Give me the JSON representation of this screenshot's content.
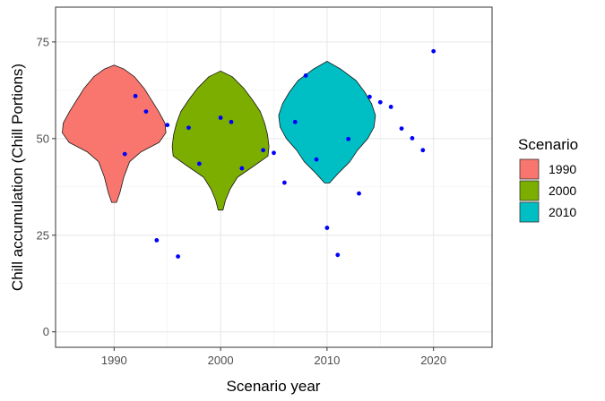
{
  "chart_data": {
    "type": "violin",
    "xlabel": "Scenario year",
    "ylabel": "Chill accumulation (Chill Portions)",
    "xlim": [
      1984.5,
      2025.5
    ],
    "ylim": [
      -4,
      84
    ],
    "x_ticks": [
      1990,
      2000,
      2010,
      2020
    ],
    "x_tick_labels": [
      "1990",
      "2000",
      "2010",
      "2020"
    ],
    "y_ticks": [
      0,
      25,
      50,
      75
    ],
    "y_tick_labels": [
      "0",
      "25",
      "50",
      "75"
    ],
    "grid": true,
    "legend": {
      "title": "Scenario",
      "position": "right",
      "entries": [
        {
          "label": "1990",
          "color": "#F8766D"
        },
        {
          "label": "2000",
          "color": "#7CAE00"
        },
        {
          "label": "2010",
          "color": "#00BFC4"
        }
      ]
    },
    "violins": [
      {
        "name": "1990",
        "x": 1990,
        "color": "#F8766D",
        "profile": [
          [
            33.5,
            0.05
          ],
          [
            36,
            0.12
          ],
          [
            40,
            0.2
          ],
          [
            44,
            0.32
          ],
          [
            46.5,
            0.55
          ],
          [
            49,
            0.93
          ],
          [
            51.5,
            1.07
          ],
          [
            54,
            1.05
          ],
          [
            57,
            0.92
          ],
          [
            60,
            0.77
          ],
          [
            63,
            0.62
          ],
          [
            66,
            0.42
          ],
          [
            68,
            0.2
          ],
          [
            69,
            0.0
          ]
        ]
      },
      {
        "name": "2000",
        "x": 2000,
        "color": "#7CAE00",
        "profile": [
          [
            31.5,
            0.05
          ],
          [
            34,
            0.1
          ],
          [
            37,
            0.2
          ],
          [
            40,
            0.35
          ],
          [
            43,
            0.7
          ],
          [
            45.5,
            0.98
          ],
          [
            48,
            1.0
          ],
          [
            51,
            0.97
          ],
          [
            54,
            0.91
          ],
          [
            57,
            0.82
          ],
          [
            60,
            0.66
          ],
          [
            63,
            0.48
          ],
          [
            66,
            0.24
          ],
          [
            67.5,
            0.0
          ]
        ]
      },
      {
        "name": "2010",
        "x": 2010,
        "color": "#00BFC4",
        "profile": [
          [
            38.5,
            0.05
          ],
          [
            41,
            0.23
          ],
          [
            44,
            0.47
          ],
          [
            47,
            0.63
          ],
          [
            50,
            0.84
          ],
          [
            53,
            0.97
          ],
          [
            56,
            1.0
          ],
          [
            59,
            0.92
          ],
          [
            62,
            0.78
          ],
          [
            65,
            0.6
          ],
          [
            68,
            0.28
          ],
          [
            70,
            0.0
          ]
        ]
      }
    ],
    "points": [
      {
        "x": 1991,
        "y": 46.0
      },
      {
        "x": 1992,
        "y": 61.0
      },
      {
        "x": 1993,
        "y": 57.0
      },
      {
        "x": 1994,
        "y": 23.7
      },
      {
        "x": 1995,
        "y": 53.5
      },
      {
        "x": 1996,
        "y": 19.5
      },
      {
        "x": 1997,
        "y": 52.8
      },
      {
        "x": 1998,
        "y": 43.5
      },
      {
        "x": 2000,
        "y": 55.4
      },
      {
        "x": 2001,
        "y": 54.3
      },
      {
        "x": 2002,
        "y": 42.3
      },
      {
        "x": 2004,
        "y": 47.0
      },
      {
        "x": 2005,
        "y": 46.3
      },
      {
        "x": 2006,
        "y": 38.6
      },
      {
        "x": 2007,
        "y": 54.3
      },
      {
        "x": 2008,
        "y": 66.3
      },
      {
        "x": 2009,
        "y": 44.6
      },
      {
        "x": 2010,
        "y": 26.9
      },
      {
        "x": 2011,
        "y": 19.9
      },
      {
        "x": 2012,
        "y": 49.9
      },
      {
        "x": 2013,
        "y": 35.8
      },
      {
        "x": 2014,
        "y": 60.8
      },
      {
        "x": 2015,
        "y": 59.4
      },
      {
        "x": 2016,
        "y": 58.2
      },
      {
        "x": 2017,
        "y": 52.6
      },
      {
        "x": 2018,
        "y": 50.1
      },
      {
        "x": 2019,
        "y": 47.0
      },
      {
        "x": 2020,
        "y": 72.6
      }
    ],
    "point_color": "#0000FF"
  }
}
